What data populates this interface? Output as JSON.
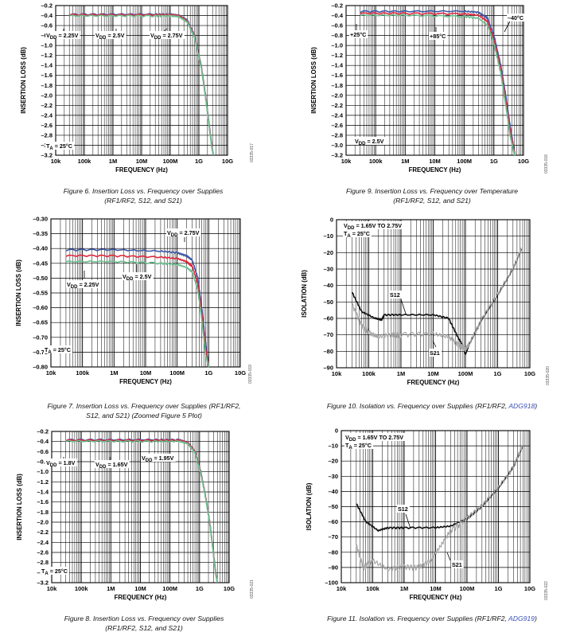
{
  "colors": {
    "blue": "#3b55a5",
    "red": "#e0283c",
    "green": "#6cbf8f",
    "black": "#111111",
    "gray": "#a6a6a6"
  },
  "charts": [
    {
      "id": "fig6",
      "caption_line1": "Figure 6. Insertion Loss vs. Frequency over Supplies",
      "caption_line2": "(RF1/RF2, S12, and S21)",
      "sidecode": "03335-017",
      "chart_data": {
        "type": "line",
        "xlabel": "FREQUENCY (Hz)",
        "ylabel": "INSERTION LOSS (dB)",
        "xscale": "log",
        "xlim": [
          10000,
          10000000000
        ],
        "ylim": [
          -3.2,
          -0.2
        ],
        "x_ticks": [
          "10k",
          "100k",
          "1M",
          "10M",
          "100M",
          "1G",
          "10G"
        ],
        "y_ticks": [
          "–0.2",
          "–0.4",
          "–0.6",
          "–0.8",
          "–1.0",
          "–1.2",
          "–1.4",
          "–1.6",
          "–1.8",
          "–2.0",
          "–2.2",
          "–2.4",
          "–2.6",
          "–2.8",
          "–3.0",
          "–3.2"
        ],
        "annotations": [
          {
            "text": "VDD = 2.25V"
          },
          {
            "text": "VDD = 2.5V"
          },
          {
            "text": "VDD = 2.75V"
          },
          {
            "text": "TA = 25°C"
          }
        ],
        "series": [
          {
            "color": "blue",
            "x": [
              30000,
              1000000,
              30000000,
              100000000,
              200000000,
              400000000,
              700000000,
              1200000000,
              1700000000,
              2300000000,
              2800000000,
              3200000000
            ],
            "y": [
              -0.38,
              -0.38,
              -0.38,
              -0.38,
              -0.4,
              -0.5,
              -0.8,
              -1.4,
              -2.0,
              -2.6,
              -3.0,
              -3.2
            ]
          },
          {
            "color": "red",
            "x": [
              30000,
              1000000,
              30000000,
              100000000,
              200000000,
              400000000,
              700000000,
              1200000000,
              1700000000,
              2300000000,
              2800000000,
              3200000000
            ],
            "y": [
              -0.39,
              -0.39,
              -0.39,
              -0.39,
              -0.41,
              -0.52,
              -0.82,
              -1.42,
              -2.02,
              -2.62,
              -3.02,
              -3.2
            ]
          },
          {
            "color": "green",
            "x": [
              30000,
              1000000,
              30000000,
              100000000,
              200000000,
              400000000,
              700000000,
              1200000000,
              1700000000,
              2300000000,
              2800000000,
              3200000000
            ],
            "y": [
              -0.41,
              -0.41,
              -0.41,
              -0.41,
              -0.43,
              -0.54,
              -0.84,
              -1.44,
              -2.04,
              -2.64,
              -3.04,
              -3.2
            ]
          }
        ]
      }
    },
    {
      "id": "fig9",
      "caption_line1": "Figure 9. Insertion Loss vs. Frequency over Temperature",
      "caption_line2": "(RF1/RF2, S12, and S21)",
      "sidecode": "03335-018",
      "chart_data": {
        "type": "line",
        "xlabel": "FREQUENCY (Hz)",
        "ylabel": "INSERTION LOSS (dB)",
        "xscale": "log",
        "xlim": [
          10000,
          10000000000
        ],
        "ylim": [
          -3.2,
          -0.2
        ],
        "x_ticks": [
          "10k",
          "100k",
          "1M",
          "10M",
          "100M",
          "1G",
          "10G"
        ],
        "y_ticks": [
          "–0.2",
          "–0.4",
          "–0.6",
          "–0.8",
          "–1.0",
          "–1.2",
          "–1.4",
          "–1.6",
          "–1.8",
          "–2.0",
          "–2.2",
          "–2.4",
          "–2.6",
          "–2.8",
          "–3.0",
          "–3.2"
        ],
        "annotations": [
          {
            "text": "–40°C"
          },
          {
            "text": "+25°C"
          },
          {
            "text": "+85°C"
          },
          {
            "text": "VDD = 2.5V"
          }
        ],
        "series": [
          {
            "color": "blue",
            "x": [
              30000,
              1000000,
              100000000,
              300000000,
              600000000,
              1000000000,
              1700000000,
              2500000000,
              3500000000,
              4500000000,
              5200000000
            ],
            "y": [
              -0.32,
              -0.32,
              -0.32,
              -0.34,
              -0.45,
              -0.8,
              -1.4,
              -2.0,
              -2.6,
              -3.0,
              -3.2
            ]
          },
          {
            "color": "red",
            "x": [
              30000,
              1000000,
              100000000,
              300000000,
              600000000,
              1000000000,
              1700000000,
              2500000000,
              3500000000,
              4500000000,
              5200000000
            ],
            "y": [
              -0.36,
              -0.36,
              -0.37,
              -0.4,
              -0.52,
              -0.88,
              -1.48,
              -2.1,
              -2.7,
              -3.05,
              -3.2
            ]
          },
          {
            "color": "green",
            "x": [
              30000,
              1000000,
              100000000,
              300000000,
              600000000,
              1000000000,
              1700000000,
              2500000000,
              3500000000,
              4500000000,
              5200000000
            ],
            "y": [
              -0.4,
              -0.4,
              -0.42,
              -0.46,
              -0.6,
              -0.96,
              -1.56,
              -2.2,
              -2.8,
              -3.1,
              -3.2
            ]
          }
        ]
      }
    },
    {
      "id": "fig7",
      "caption_line1": "Figure 7. Insertion Loss vs. Frequency over Supplies (RF1/RF2,",
      "caption_line2": "S12, and S21) (Zoomed Figure 5 Plot)",
      "sidecode": "03335-019",
      "chart_data": {
        "type": "line",
        "xlabel": "FREQUENCY (Hz)",
        "ylabel": "INSERTION LOSS (dB)",
        "xscale": "log",
        "xlim": [
          10000,
          10000000000
        ],
        "ylim": [
          -0.8,
          -0.3
        ],
        "x_ticks": [
          "10k",
          "100k",
          "1M",
          "10M",
          "100M",
          "1G",
          "10G"
        ],
        "y_ticks": [
          "–0.30",
          "–0.35",
          "–0.40",
          "–0.45",
          "–0.50",
          "–0.55",
          "–0.60",
          "–0.65",
          "–0.70",
          "–0.75",
          "–0.80"
        ],
        "annotations": [
          {
            "text": "VDD = 2.75V"
          },
          {
            "text": "VDD = 2.5V"
          },
          {
            "text": "VDD = 2.25V"
          },
          {
            "text": "TA = 25°C"
          }
        ],
        "series": [
          {
            "color": "blue",
            "x": [
              30000,
              1000000,
              30000000,
              100000000,
              200000000,
              300000000,
              450000000,
              600000000,
              800000000,
              1000000000
            ],
            "y": [
              -0.405,
              -0.405,
              -0.41,
              -0.415,
              -0.425,
              -0.44,
              -0.5,
              -0.6,
              -0.72,
              -0.8
            ]
          },
          {
            "color": "red",
            "x": [
              30000,
              1000000,
              30000000,
              100000000,
              200000000,
              300000000,
              450000000,
              600000000,
              800000000,
              1000000000
            ],
            "y": [
              -0.425,
              -0.425,
              -0.43,
              -0.435,
              -0.445,
              -0.46,
              -0.52,
              -0.62,
              -0.74,
              -0.8
            ]
          },
          {
            "color": "green",
            "x": [
              30000,
              1000000,
              30000000,
              100000000,
              200000000,
              300000000,
              450000000,
              600000000,
              800000000,
              1000000000
            ],
            "y": [
              -0.445,
              -0.445,
              -0.45,
              -0.455,
              -0.465,
              -0.48,
              -0.54,
              -0.64,
              -0.76,
              -0.8
            ]
          }
        ]
      }
    },
    {
      "id": "fig10",
      "caption_line1": "Figure 10. Isolation vs. Frequency over Supplies (RF1/RF2, ",
      "caption_link": "ADG918",
      "caption_tail": ")",
      "caption_line2": "",
      "sidecode": "03335-020",
      "chart_data": {
        "type": "line",
        "xlabel": "FREQUENCY (Hz)",
        "ylabel": "ISOLATION (dB)",
        "xscale": "log",
        "xlim": [
          10000,
          10000000000
        ],
        "ylim": [
          -90,
          0
        ],
        "x_ticks": [
          "10k",
          "100k",
          "1M",
          "10M",
          "100M",
          "1G",
          "10G"
        ],
        "y_ticks": [
          "0",
          "–10",
          "–20",
          "–30",
          "–40",
          "–50",
          "–60",
          "–70",
          "–80",
          "–90"
        ],
        "annotations": [
          {
            "text": "VDD = 1.65V TO 2.75V"
          },
          {
            "text": "TA = 25°C"
          },
          {
            "text": "S12"
          },
          {
            "text": "S21"
          }
        ],
        "series": [
          {
            "name": "S12",
            "color": "black",
            "x": [
              30000,
              60000,
              150000,
              250000,
              300000,
              1000000,
              10000000,
              30000000,
              60000000,
              90000000,
              100000000,
              130000000,
              300000000,
              1000000000,
              3000000000,
              5500000000
            ],
            "y": [
              -44,
              -56,
              -60,
              -61,
              -58,
              -58,
              -58,
              -60,
              -72,
              -78,
              -82,
              -76,
              -62,
              -46,
              -30,
              -18
            ]
          },
          {
            "name": "S21",
            "color": "gray",
            "x": [
              30000,
              60000,
              120000,
              200000,
              500000,
              1000000,
              10000000,
              30000000,
              60000000,
              90000000,
              100000000,
              130000000,
              300000000,
              1000000000,
              3000000000,
              5500000000
            ],
            "y": [
              -52,
              -64,
              -70,
              -72,
              -70,
              -70,
              -70,
              -72,
              -76,
              -78,
              -80,
              -76,
              -62,
              -46,
              -30,
              -18
            ]
          }
        ]
      }
    },
    {
      "id": "fig8",
      "caption_line1": "Figure 8. Insertion Loss vs. Frequency over Supplies",
      "caption_line2": "(RF1/RF2, S12, and S21)",
      "sidecode": "03335-021",
      "chart_data": {
        "type": "line",
        "xlabel": "FREQUENCY (Hz)",
        "ylabel": "INSERTION LOSS (dB)",
        "xscale": "log",
        "xlim": [
          10000,
          10000000000
        ],
        "ylim": [
          -3.2,
          -0.2
        ],
        "x_ticks": [
          "10k",
          "100k",
          "1M",
          "10M",
          "100M",
          "1G",
          "10G"
        ],
        "y_ticks": [
          "–0.2",
          "–0.4",
          "–0.6",
          "–0.8",
          "–1.0",
          "–1.2",
          "–1.4",
          "–1.6",
          "–1.8",
          "–2.0",
          "–2.2",
          "–2.4",
          "–2.6",
          "–2.8",
          "–3.0",
          "–3.2"
        ],
        "annotations": [
          {
            "text": "VDD = 1.8V"
          },
          {
            "text": "VDD = 1.65V"
          },
          {
            "text": "VDD = 1.95V"
          },
          {
            "text": "TA = 25°C"
          }
        ],
        "series": [
          {
            "color": "blue",
            "x": [
              30000,
              1000000,
              30000000,
              200000000,
              400000000,
              700000000,
              1100000000,
              1600000000,
              2200000000,
              2800000000,
              3500000000,
              4000000000
            ],
            "y": [
              -0.37,
              -0.37,
              -0.37,
              -0.37,
              -0.42,
              -0.6,
              -1.0,
              -1.5,
              -2.0,
              -2.5,
              -3.0,
              -3.2
            ]
          },
          {
            "color": "red",
            "x": [
              30000,
              1000000,
              30000000,
              200000000,
              400000000,
              700000000,
              1100000000,
              1600000000,
              2200000000,
              2800000000,
              3500000000,
              4000000000
            ],
            "y": [
              -0.38,
              -0.38,
              -0.38,
              -0.38,
              -0.43,
              -0.61,
              -1.01,
              -1.51,
              -2.01,
              -2.51,
              -3.01,
              -3.2
            ]
          },
          {
            "color": "green",
            "x": [
              30000,
              1000000,
              30000000,
              200000000,
              400000000,
              700000000,
              1100000000,
              1600000000,
              2200000000,
              2800000000,
              3500000000,
              4000000000
            ],
            "y": [
              -0.4,
              -0.4,
              -0.4,
              -0.4,
              -0.45,
              -0.63,
              -1.03,
              -1.53,
              -2.03,
              -2.53,
              -3.03,
              -3.2
            ]
          }
        ]
      }
    },
    {
      "id": "fig11",
      "caption_line1": "Figure 11. Isolation vs. Frequency over Supplies (RF1/RF2, ",
      "caption_link": "ADG919",
      "caption_tail": ")",
      "caption_line2": "",
      "sidecode": "03335-022",
      "chart_data": {
        "type": "line",
        "xlabel": "FREQUENCY (Hz)",
        "ylabel": "ISOLATION (dB)",
        "xscale": "log",
        "xlim": [
          10000,
          10000000000
        ],
        "ylim": [
          -100,
          0
        ],
        "x_ticks": [
          "10k",
          "100k",
          "1M",
          "10M",
          "100M",
          "1G",
          "10G"
        ],
        "y_ticks": [
          "0",
          "–10",
          "–20",
          "–30",
          "–40",
          "–50",
          "–60",
          "–70",
          "–80",
          "–90",
          "–100"
        ],
        "annotations": [
          {
            "text": "VDD = 1.65V TO 2.75V"
          },
          {
            "text": "TA = 25°C"
          },
          {
            "text": "S12"
          },
          {
            "text": "S21"
          }
        ],
        "series": [
          {
            "name": "S12",
            "color": "black",
            "x": [
              30000,
              60000,
              150000,
              300000,
              1000000,
              10000000,
              30000000,
              100000000,
              300000000,
              1000000000,
              3000000000,
              6000000000
            ],
            "y": [
              -48,
              -60,
              -66,
              -64,
              -64,
              -64,
              -63,
              -58,
              -50,
              -38,
              -24,
              -10
            ]
          },
          {
            "name": "S21",
            "color": "gray",
            "x": [
              30000,
              50000,
              100000,
              300000,
              1000000,
              3000000,
              7000000,
              15000000,
              30000000,
              100000000,
              300000000,
              1000000000,
              3000000000,
              6000000000
            ],
            "y": [
              -76,
              -90,
              -86,
              -92,
              -90,
              -90,
              -86,
              -76,
              -66,
              -58,
              -50,
              -38,
              -24,
              -10
            ]
          }
        ]
      }
    }
  ]
}
